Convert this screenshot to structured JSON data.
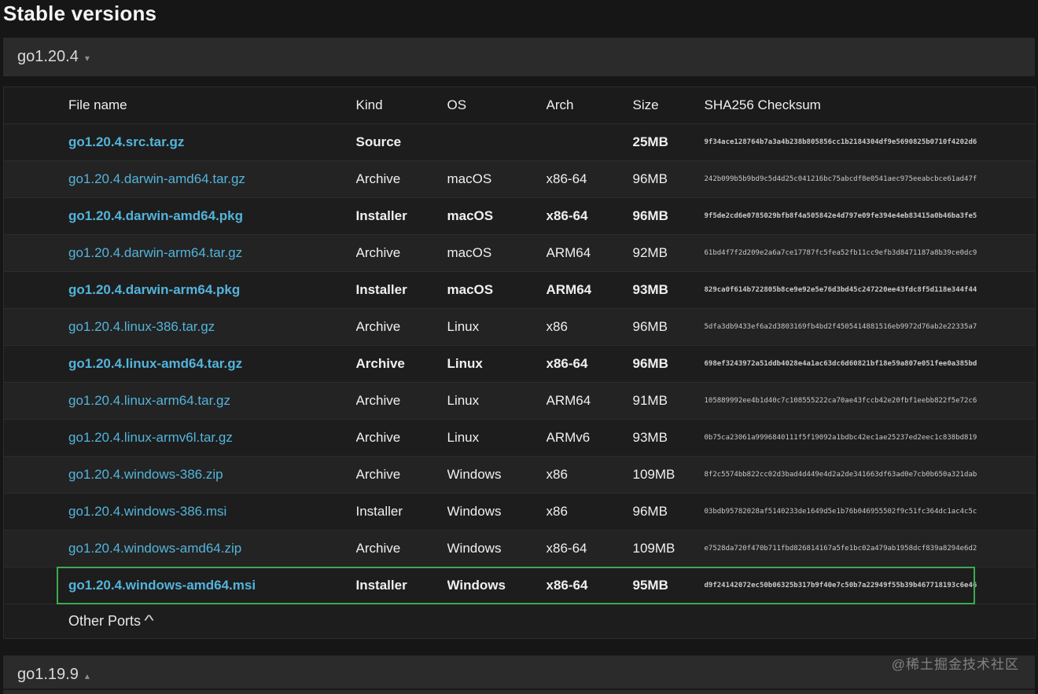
{
  "page_title": "Stable versions",
  "colors": {
    "link_blue": "#53b4db",
    "highlight_green": "#3caa50"
  },
  "sections": {
    "current": {
      "label": "go1.20.4",
      "chevron_glyph": "▾"
    },
    "next": {
      "label": "go1.19.9",
      "chevron_glyph": "▴"
    }
  },
  "table": {
    "columns": [
      "File name",
      "Kind",
      "OS",
      "Arch",
      "Size",
      "SHA256 Checksum"
    ],
    "rows": [
      {
        "file": "go1.20.4.src.tar.gz",
        "kind": "Source",
        "os": "",
        "arch": "",
        "size": "25MB",
        "sha256": "9f34ace128764b7a3a4b238b805856cc1b2184304df9e5690825b0710f4202d6",
        "featured": true,
        "annotated": false
      },
      {
        "file": "go1.20.4.darwin-amd64.tar.gz",
        "kind": "Archive",
        "os": "macOS",
        "arch": "x86-64",
        "size": "96MB",
        "sha256": "242b099b5b9bd9c5d4d25c041216bc75abcdf8e0541aec975eeabcbce61ad47f",
        "featured": false,
        "annotated": false
      },
      {
        "file": "go1.20.4.darwin-amd64.pkg",
        "kind": "Installer",
        "os": "macOS",
        "arch": "x86-64",
        "size": "96MB",
        "sha256": "9f5de2cd6e0785029bfb8f4a505842e4d797e09fe394e4eb83415a0b46ba3fe5",
        "featured": true,
        "annotated": false
      },
      {
        "file": "go1.20.4.darwin-arm64.tar.gz",
        "kind": "Archive",
        "os": "macOS",
        "arch": "ARM64",
        "size": "92MB",
        "sha256": "61bd4f7f2d209e2a6a7ce17787fc5fea52fb11cc9efb3d8471187a8b39ce0dc9",
        "featured": false,
        "annotated": false
      },
      {
        "file": "go1.20.4.darwin-arm64.pkg",
        "kind": "Installer",
        "os": "macOS",
        "arch": "ARM64",
        "size": "93MB",
        "sha256": "829ca0f614b722805b8ce9e92e5e76d3bd45c247220ee43fdc8f5d118e344f44",
        "featured": true,
        "annotated": false
      },
      {
        "file": "go1.20.4.linux-386.tar.gz",
        "kind": "Archive",
        "os": "Linux",
        "arch": "x86",
        "size": "96MB",
        "sha256": "5dfa3db9433ef6a2d3803169fb4bd2f4505414881516eb9972d76ab2e22335a7",
        "featured": false,
        "annotated": false
      },
      {
        "file": "go1.20.4.linux-amd64.tar.gz",
        "kind": "Archive",
        "os": "Linux",
        "arch": "x86-64",
        "size": "96MB",
        "sha256": "698ef3243972a51ddb4028e4a1ac63dc6d60821bf18e59a807e051fee0a385bd",
        "featured": true,
        "annotated": false
      },
      {
        "file": "go1.20.4.linux-arm64.tar.gz",
        "kind": "Archive",
        "os": "Linux",
        "arch": "ARM64",
        "size": "91MB",
        "sha256": "105889992ee4b1d40c7c108555222ca70ae43fccb42e20fbf1eebb822f5e72c6",
        "featured": false,
        "annotated": false
      },
      {
        "file": "go1.20.4.linux-armv6l.tar.gz",
        "kind": "Archive",
        "os": "Linux",
        "arch": "ARMv6",
        "size": "93MB",
        "sha256": "0b75ca23061a9996840111f5f19092a1bdbc42ec1ae25237ed2eec1c838bd819",
        "featured": false,
        "annotated": false
      },
      {
        "file": "go1.20.4.windows-386.zip",
        "kind": "Archive",
        "os": "Windows",
        "arch": "x86",
        "size": "109MB",
        "sha256": "8f2c5574bb822cc02d3bad4d449e4d2a2de341663df63ad0e7cb0b650a321dab",
        "featured": false,
        "annotated": false
      },
      {
        "file": "go1.20.4.windows-386.msi",
        "kind": "Installer",
        "os": "Windows",
        "arch": "x86",
        "size": "96MB",
        "sha256": "03bdb95782028af5140233de1649d5e1b76b046955502f9c51fc364dc1ac4c5c",
        "featured": false,
        "annotated": false
      },
      {
        "file": "go1.20.4.windows-amd64.zip",
        "kind": "Archive",
        "os": "Windows",
        "arch": "x86-64",
        "size": "109MB",
        "sha256": "e7528da720f470b711fbd826814167a5fe1bc02a479ab1958dcf839a8294e6d2",
        "featured": false,
        "annotated": false
      },
      {
        "file": "go1.20.4.windows-amd64.msi",
        "kind": "Installer",
        "os": "Windows",
        "arch": "x86-64",
        "size": "95MB",
        "sha256": "d9f24142072ec50b06325b317b9f40e7c50b7a22949f55b39b467718193c6e46",
        "featured": true,
        "annotated": true
      }
    ],
    "other_ports_label": "Other Ports",
    "other_ports_caret": "^"
  },
  "watermark": "@稀土掘金技术社区"
}
